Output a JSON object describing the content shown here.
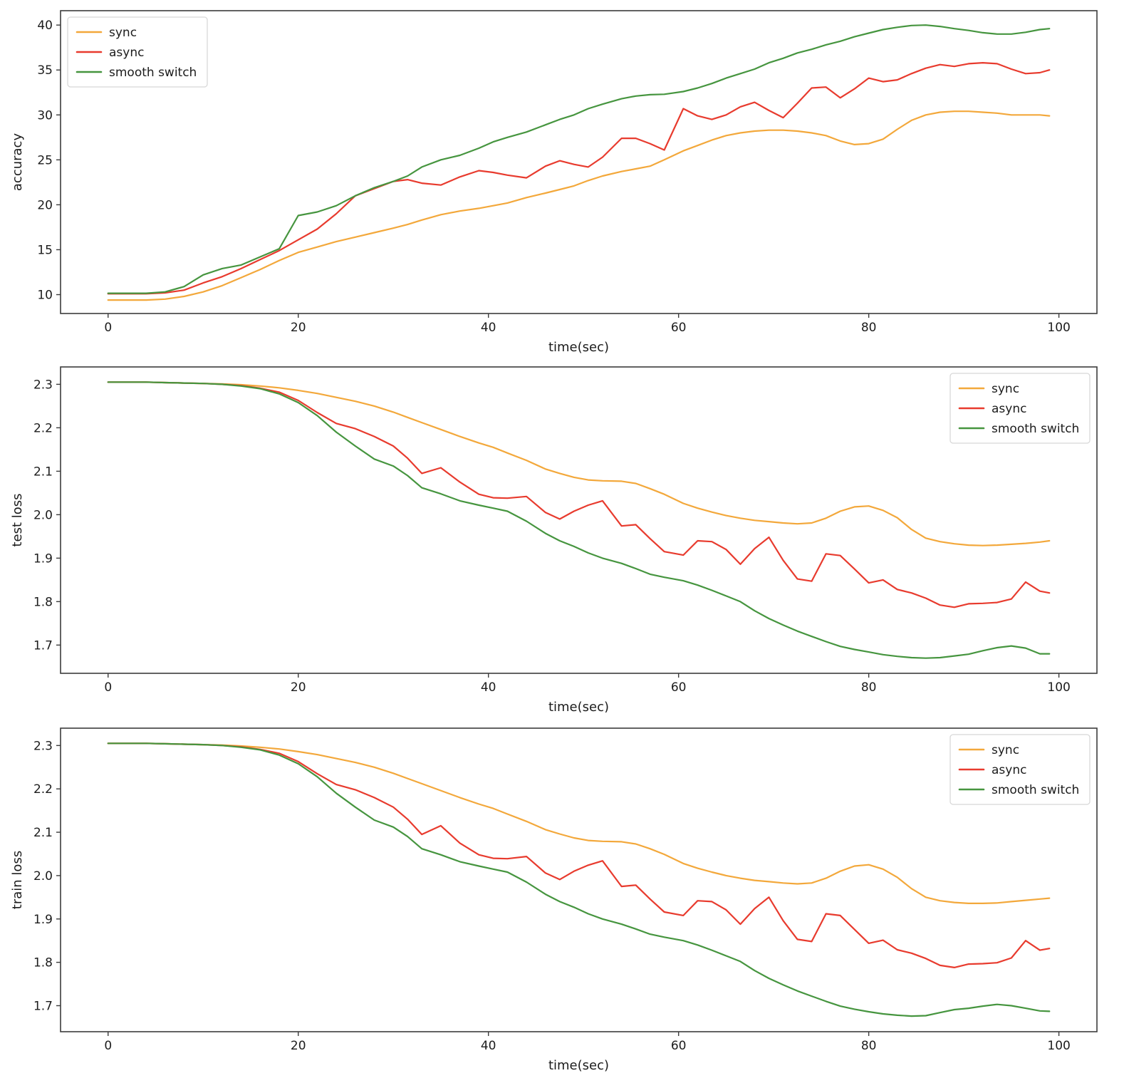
{
  "figure": {
    "background": "#ffffff",
    "spine_color": "#3c3c3c",
    "text_color": "#1c1c1c",
    "legend_border_color": "#d8d8d8",
    "legend_background": "#ffffff"
  },
  "series_colors": {
    "sync": "#F3A83B",
    "async": "#E83B2E",
    "smooth switch": "#46953F"
  },
  "chart_data": [
    {
      "type": "line",
      "title": "",
      "xlabel": "time(sec)",
      "ylabel": "accuracy",
      "xlim": [
        -5,
        104
      ],
      "ylim": [
        7.9,
        41.6
      ],
      "xticks": [
        0,
        20,
        40,
        60,
        80,
        100
      ],
      "yticks": [
        10,
        15,
        20,
        25,
        30,
        35,
        40
      ],
      "ytick_decimals": 0,
      "grid": false,
      "legend_position": "upper-left",
      "legend_entries": [
        "sync",
        "async",
        "smooth switch"
      ],
      "x": [
        0,
        2,
        4,
        6,
        8,
        10,
        12,
        14,
        16,
        18,
        20,
        22,
        24,
        26,
        28,
        30,
        31.5,
        33,
        35,
        37,
        39,
        40.5,
        42,
        44,
        46,
        47.5,
        49,
        50.5,
        52,
        54,
        55.5,
        57,
        58.5,
        60.5,
        62,
        63.5,
        65,
        66.5,
        68,
        69.5,
        71,
        72.5,
        74,
        75.5,
        77,
        78.5,
        80,
        81.5,
        83,
        84.5,
        86,
        87.5,
        89,
        90.5,
        92,
        93.5,
        95,
        96.5,
        98,
        99
      ],
      "series": [
        {
          "name": "sync",
          "values": [
            9.4,
            9.4,
            9.4,
            9.5,
            9.8,
            10.3,
            11,
            11.9,
            12.8,
            13.8,
            14.7,
            15.3,
            15.9,
            16.4,
            16.9,
            17.4,
            17.8,
            18.3,
            18.9,
            19.3,
            19.6,
            19.9,
            20.2,
            20.8,
            21.3,
            21.7,
            22.1,
            22.7,
            23.2,
            23.7,
            24,
            24.3,
            25,
            26,
            26.6,
            27.2,
            27.7,
            28,
            28.2,
            28.3,
            28.3,
            28.2,
            28,
            27.7,
            27.1,
            26.7,
            26.8,
            27.3,
            28.4,
            29.4,
            30,
            30.3,
            30.4,
            30.4,
            30.3,
            30.2,
            30,
            30,
            30,
            29.9
          ]
        },
        {
          "name": "async",
          "values": [
            10.1,
            10.1,
            10.1,
            10.2,
            10.5,
            11.3,
            12,
            12.9,
            13.9,
            14.9,
            16.1,
            17.3,
            19,
            21,
            21.8,
            22.6,
            22.8,
            22.4,
            22.2,
            23.1,
            23.8,
            23.6,
            23.3,
            23,
            24.3,
            24.9,
            24.5,
            24.2,
            25.3,
            27.4,
            27.4,
            26.8,
            26.1,
            30.7,
            29.9,
            29.5,
            30,
            30.9,
            31.4,
            30.5,
            29.7,
            31.3,
            33,
            33.1,
            31.9,
            32.9,
            34.1,
            33.7,
            33.9,
            34.6,
            35.2,
            35.6,
            35.4,
            35.7,
            35.8,
            35.7,
            35.1,
            34.6,
            34.7,
            35
          ]
        },
        {
          "name": "smooth switch",
          "values": [
            10.15,
            10.15,
            10.15,
            10.3,
            10.9,
            12.2,
            12.9,
            13.3,
            14.2,
            15.1,
            18.8,
            19.2,
            19.9,
            21,
            21.9,
            22.6,
            23.2,
            24.2,
            25,
            25.5,
            26.3,
            27,
            27.5,
            28.1,
            28.9,
            29.5,
            30,
            30.7,
            31.2,
            31.8,
            32.1,
            32.25,
            32.3,
            32.6,
            33,
            33.5,
            34.1,
            34.6,
            35.1,
            35.8,
            36.3,
            36.9,
            37.3,
            37.8,
            38.2,
            38.7,
            39.1,
            39.5,
            39.75,
            39.95,
            40,
            39.85,
            39.6,
            39.4,
            39.15,
            39,
            39,
            39.2,
            39.5,
            39.6
          ]
        }
      ]
    },
    {
      "type": "line",
      "title": "",
      "xlabel": "time(sec)",
      "ylabel": "test loss",
      "xlim": [
        -5,
        104
      ],
      "ylim": [
        1.635,
        2.34
      ],
      "xticks": [
        0,
        20,
        40,
        60,
        80,
        100
      ],
      "yticks": [
        1.7,
        1.8,
        1.9,
        2.0,
        2.1,
        2.2,
        2.3
      ],
      "ytick_decimals": 1,
      "grid": false,
      "legend_position": "upper-right",
      "legend_entries": [
        "sync",
        "async",
        "smooth switch"
      ],
      "x": [
        0,
        2,
        4,
        6,
        8,
        10,
        12,
        14,
        16,
        18,
        20,
        22,
        24,
        26,
        28,
        30,
        31.5,
        33,
        35,
        37,
        39,
        40.5,
        42,
        44,
        46,
        47.5,
        49,
        50.5,
        52,
        54,
        55.5,
        57,
        58.5,
        60.5,
        62,
        63.5,
        65,
        66.5,
        68,
        69.5,
        71,
        72.5,
        74,
        75.5,
        77,
        78.5,
        80,
        81.5,
        83,
        84.5,
        86,
        87.5,
        89,
        90.5,
        92,
        93.5,
        95,
        96.5,
        98,
        99
      ],
      "series": [
        {
          "name": "sync",
          "values": [
            2.305,
            2.305,
            2.305,
            2.304,
            2.303,
            2.302,
            2.301,
            2.299,
            2.296,
            2.292,
            2.286,
            2.279,
            2.27,
            2.261,
            2.25,
            2.236,
            2.224,
            2.212,
            2.196,
            2.18,
            2.165,
            2.155,
            2.142,
            2.125,
            2.105,
            2.095,
            2.086,
            2.08,
            2.078,
            2.077,
            2.072,
            2.06,
            2.047,
            2.026,
            2.015,
            2.006,
            1.998,
            1.992,
            1.987,
            1.984,
            1.981,
            1.979,
            1.981,
            1.992,
            2.008,
            2.018,
            2.02,
            2.01,
            1.993,
            1.966,
            1.946,
            1.938,
            1.933,
            1.93,
            1.929,
            1.93,
            1.932,
            1.934,
            1.937,
            1.94
          ]
        },
        {
          "name": "async",
          "values": [
            2.305,
            2.305,
            2.305,
            2.304,
            2.303,
            2.302,
            2.3,
            2.297,
            2.291,
            2.282,
            2.263,
            2.235,
            2.21,
            2.198,
            2.18,
            2.158,
            2.13,
            2.095,
            2.108,
            2.075,
            2.047,
            2.039,
            2.038,
            2.042,
            2.005,
            1.99,
            2.008,
            2.022,
            2.032,
            1.974,
            1.977,
            1.945,
            1.915,
            1.907,
            1.94,
            1.938,
            1.92,
            1.886,
            1.922,
            1.948,
            1.895,
            1.852,
            1.847,
            1.91,
            1.906,
            1.875,
            1.843,
            1.85,
            1.828,
            1.82,
            1.808,
            1.792,
            1.787,
            1.795,
            1.796,
            1.798,
            1.806,
            1.845,
            1.824,
            1.82
          ]
        },
        {
          "name": "smooth switch",
          "values": [
            2.305,
            2.305,
            2.305,
            2.304,
            2.303,
            2.302,
            2.3,
            2.296,
            2.29,
            2.278,
            2.258,
            2.228,
            2.19,
            2.158,
            2.128,
            2.112,
            2.09,
            2.062,
            2.048,
            2.032,
            2.022,
            2.015,
            2.008,
            1.985,
            1.957,
            1.94,
            1.927,
            1.912,
            1.9,
            1.888,
            1.876,
            1.863,
            1.856,
            1.848,
            1.838,
            1.826,
            1.813,
            1.8,
            1.779,
            1.761,
            1.746,
            1.732,
            1.72,
            1.708,
            1.697,
            1.69,
            1.684,
            1.678,
            1.674,
            1.671,
            1.67,
            1.671,
            1.675,
            1.679,
            1.687,
            1.694,
            1.698,
            1.693,
            1.68,
            1.68
          ]
        }
      ]
    },
    {
      "type": "line",
      "title": "",
      "xlabel": "time(sec)",
      "ylabel": "train loss",
      "xlim": [
        -5,
        104
      ],
      "ylim": [
        1.64,
        2.34
      ],
      "xticks": [
        0,
        20,
        40,
        60,
        80,
        100
      ],
      "yticks": [
        1.7,
        1.8,
        1.9,
        2.0,
        2.1,
        2.2,
        2.3
      ],
      "ytick_decimals": 1,
      "grid": false,
      "legend_position": "upper-right",
      "legend_entries": [
        "sync",
        "async",
        "smooth switch"
      ],
      "x": [
        0,
        2,
        4,
        6,
        8,
        10,
        12,
        14,
        16,
        18,
        20,
        22,
        24,
        26,
        28,
        30,
        31.5,
        33,
        35,
        37,
        39,
        40.5,
        42,
        44,
        46,
        47.5,
        49,
        50.5,
        52,
        54,
        55.5,
        57,
        58.5,
        60.5,
        62,
        63.5,
        65,
        66.5,
        68,
        69.5,
        71,
        72.5,
        74,
        75.5,
        77,
        78.5,
        80,
        81.5,
        83,
        84.5,
        86,
        87.5,
        89,
        90.5,
        92,
        93.5,
        95,
        96.5,
        98,
        99
      ],
      "series": [
        {
          "name": "sync",
          "values": [
            2.305,
            2.305,
            2.305,
            2.304,
            2.303,
            2.302,
            2.301,
            2.299,
            2.296,
            2.292,
            2.286,
            2.279,
            2.27,
            2.261,
            2.25,
            2.236,
            2.224,
            2.212,
            2.196,
            2.18,
            2.165,
            2.155,
            2.142,
            2.125,
            2.106,
            2.096,
            2.087,
            2.081,
            2.079,
            2.078,
            2.073,
            2.062,
            2.049,
            2.028,
            2.017,
            2.008,
            2,
            1.994,
            1.989,
            1.986,
            1.983,
            1.981,
            1.983,
            1.994,
            2.01,
            2.022,
            2.025,
            2.015,
            1.996,
            1.97,
            1.95,
            1.942,
            1.938,
            1.936,
            1.936,
            1.937,
            1.94,
            1.943,
            1.946,
            1.948
          ]
        },
        {
          "name": "async",
          "values": [
            2.305,
            2.305,
            2.305,
            2.304,
            2.303,
            2.302,
            2.3,
            2.297,
            2.291,
            2.282,
            2.263,
            2.235,
            2.21,
            2.198,
            2.18,
            2.158,
            2.13,
            2.095,
            2.115,
            2.075,
            2.048,
            2.04,
            2.039,
            2.044,
            2.006,
            1.991,
            2.01,
            2.024,
            2.034,
            1.975,
            1.978,
            1.946,
            1.916,
            1.908,
            1.942,
            1.94,
            1.921,
            1.888,
            1.924,
            1.95,
            1.896,
            1.853,
            1.848,
            1.912,
            1.908,
            1.876,
            1.844,
            1.851,
            1.829,
            1.821,
            1.809,
            1.793,
            1.788,
            1.796,
            1.797,
            1.799,
            1.81,
            1.85,
            1.828,
            1.832
          ]
        },
        {
          "name": "smooth switch",
          "values": [
            2.305,
            2.305,
            2.305,
            2.304,
            2.303,
            2.302,
            2.3,
            2.296,
            2.29,
            2.278,
            2.258,
            2.228,
            2.19,
            2.158,
            2.128,
            2.112,
            2.09,
            2.062,
            2.048,
            2.032,
            2.022,
            2.015,
            2.008,
            1.985,
            1.957,
            1.94,
            1.927,
            1.912,
            1.9,
            1.888,
            1.877,
            1.865,
            1.858,
            1.85,
            1.84,
            1.828,
            1.815,
            1.802,
            1.781,
            1.763,
            1.748,
            1.734,
            1.722,
            1.71,
            1.699,
            1.692,
            1.686,
            1.681,
            1.678,
            1.676,
            1.677,
            1.684,
            1.691,
            1.694,
            1.699,
            1.703,
            1.7,
            1.694,
            1.688,
            1.687
          ]
        }
      ]
    }
  ]
}
